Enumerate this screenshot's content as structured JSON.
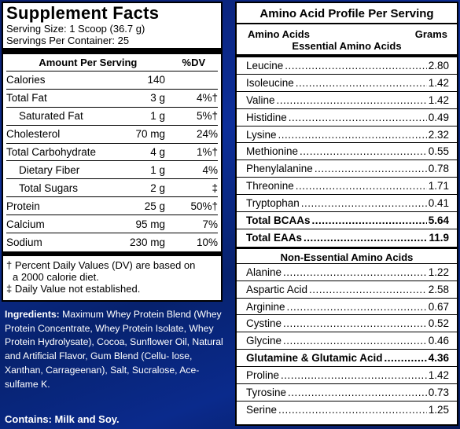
{
  "supplement_facts": {
    "title": "Supplement Facts",
    "serving_size": "Serving Size: 1 Scoop (36.7 g)",
    "servings_per_container": "Servings Per Container: 25",
    "header_amount": "Amount Per Serving",
    "header_dv": "%DV",
    "rows": [
      {
        "label": "Calories",
        "amount": "140",
        "dv": ""
      },
      {
        "label": "Total Fat",
        "amount": "3 g",
        "dv": "4%†"
      },
      {
        "label": "Saturated Fat",
        "amount": "1 g",
        "dv": "5%†"
      },
      {
        "label": "Cholesterol",
        "amount": "70 mg",
        "dv": "24%"
      },
      {
        "label": "Total Carbohydrate",
        "amount": "4 g",
        "dv": "1%†"
      },
      {
        "label": "Dietary Fiber",
        "amount": "1 g",
        "dv": "4%"
      },
      {
        "label": "Total Sugars",
        "amount": "2 g",
        "dv": "‡"
      },
      {
        "label": "Protein",
        "amount": "25 g",
        "dv": "50%†"
      },
      {
        "label": "Calcium",
        "amount": "95 mg",
        "dv": "7%"
      },
      {
        "label": "Sodium",
        "amount": "230 mg",
        "dv": "10%"
      }
    ],
    "note_1": "† Percent Daily Values (DV) are based on",
    "note_1b": "   a 2000 calorie diet.",
    "note_2": "‡ Daily Value not established."
  },
  "ingredients": {
    "label": "Ingredients:",
    "text": " Maximum Whey Protein Blend (Whey Protein Concentrate, Whey Protein Isolate, Whey Protein Hydrolysate), Cocoa, Sunflower Oil, Natural and Artificial Flavor, Gum Blend (Cellu- lose, Xanthan, Carrageenan), Salt, Sucralose, Ace- sulfame K.",
    "contains": "Contains: Milk and Soy."
  },
  "amino": {
    "title": "Amino Acid Profile Per Serving",
    "col_left": "Amino Acids",
    "col_right": "Grams",
    "essential_heading": "Essential Amino Acids",
    "essential": [
      {
        "name": "Leucine",
        "grams": "2.80"
      },
      {
        "name": "Isoleucine",
        "grams": "1.42"
      },
      {
        "name": "Valine",
        "grams": "1.42"
      },
      {
        "name": "Histidine",
        "grams": "0.49"
      },
      {
        "name": "Lysine",
        "grams": "2.32"
      },
      {
        "name": "Methionine",
        "grams": "0.55"
      },
      {
        "name": "Phenylalanine",
        "grams": "0.78"
      },
      {
        "name": "Threonine",
        "grams": "1.71"
      },
      {
        "name": "Tryptophan",
        "grams": "0.41"
      }
    ],
    "total_bcaas": {
      "name": "Total BCAAs",
      "grams": "5.64"
    },
    "total_eaas": {
      "name": "Total EAAs",
      "grams": "11.9"
    },
    "nonessential_heading": "Non-Essential Amino Acids",
    "nonessential": [
      {
        "name": "Alanine",
        "grams": "1.22",
        "bold": false
      },
      {
        "name": "Aspartic Acid",
        "grams": "2.58",
        "bold": false
      },
      {
        "name": "Arginine",
        "grams": "0.67",
        "bold": false
      },
      {
        "name": "Cystine",
        "grams": "0.52",
        "bold": false
      },
      {
        "name": "Glycine",
        "grams": "0.46",
        "bold": false
      },
      {
        "name": "Glutamine & Glutamic Acid",
        "grams": "4.36",
        "bold": true
      },
      {
        "name": "Proline",
        "grams": "1.42",
        "bold": false
      },
      {
        "name": "Tyrosine",
        "grams": "0.73",
        "bold": false
      },
      {
        "name": "Serine",
        "grams": "1.25",
        "bold": false
      }
    ]
  }
}
